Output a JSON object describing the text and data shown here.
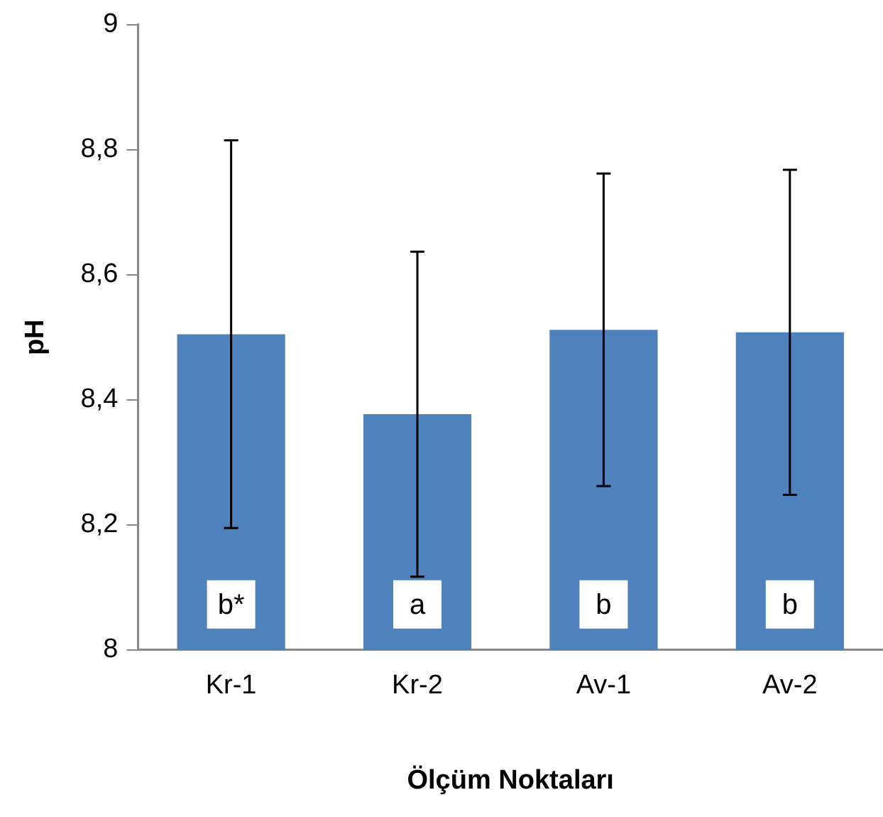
{
  "chart_data": {
    "type": "bar",
    "xlabel": "Ölçüm Noktaları",
    "ylabel": "pH",
    "categories": [
      "Kr-1",
      "Kr-2",
      "Av-1",
      "Av-2"
    ],
    "values": [
      8.505,
      8.377,
      8.512,
      8.508
    ],
    "errors": [
      0.31,
      0.26,
      0.25,
      0.26
    ],
    "color": "#4f81bd",
    "ylim": [
      8,
      9
    ],
    "yticks": [
      8,
      {
        "value": 8.2,
        "label": "8,2"
      },
      {
        "value": 8.4,
        "label": "8,4"
      },
      {
        "value": 8.6,
        "label": "8,6"
      },
      {
        "value": 8.8,
        "label": "8,8"
      },
      9
    ],
    "grid": false,
    "legend": false,
    "annotations": [
      "b*",
      "a",
      "b",
      "b"
    ]
  }
}
